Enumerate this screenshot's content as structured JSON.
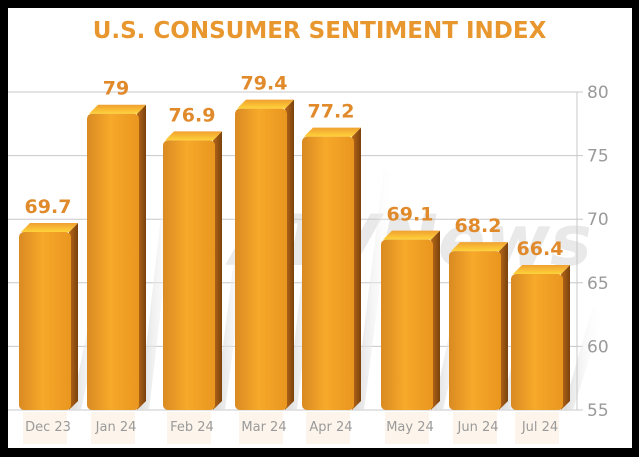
{
  "chart_data": {
    "type": "bar",
    "title": "U.S. CONSUMER SENTIMENT INDEX",
    "categories": [
      "Dec 23",
      "Jan 24",
      "Feb 24",
      "Mar 24",
      "Apr 24",
      "May 24",
      "Jun 24",
      "Jul 24"
    ],
    "values": [
      69.7,
      79,
      76.9,
      79.4,
      77.2,
      69.1,
      68.2,
      66.4
    ],
    "data_labels": [
      "69.7",
      "79",
      "76.9",
      "79.4",
      "77.2",
      "69.1",
      "68.2",
      "66.4"
    ],
    "xlabel": "",
    "ylabel": "",
    "ylim": [
      55,
      80
    ],
    "yticks": [
      55,
      60,
      65,
      70,
      75,
      80
    ],
    "y_axis_side": "right",
    "grid": true,
    "style": "3d-bars",
    "colors": {
      "bar": "#f6a623",
      "bar_dark": "#c7741a",
      "title": "#e8962e",
      "data_label": "#e08a2c",
      "axis_text": "#9a9a9a",
      "grid": "#c8c8c8"
    }
  },
  "watermark": "ATVNews"
}
